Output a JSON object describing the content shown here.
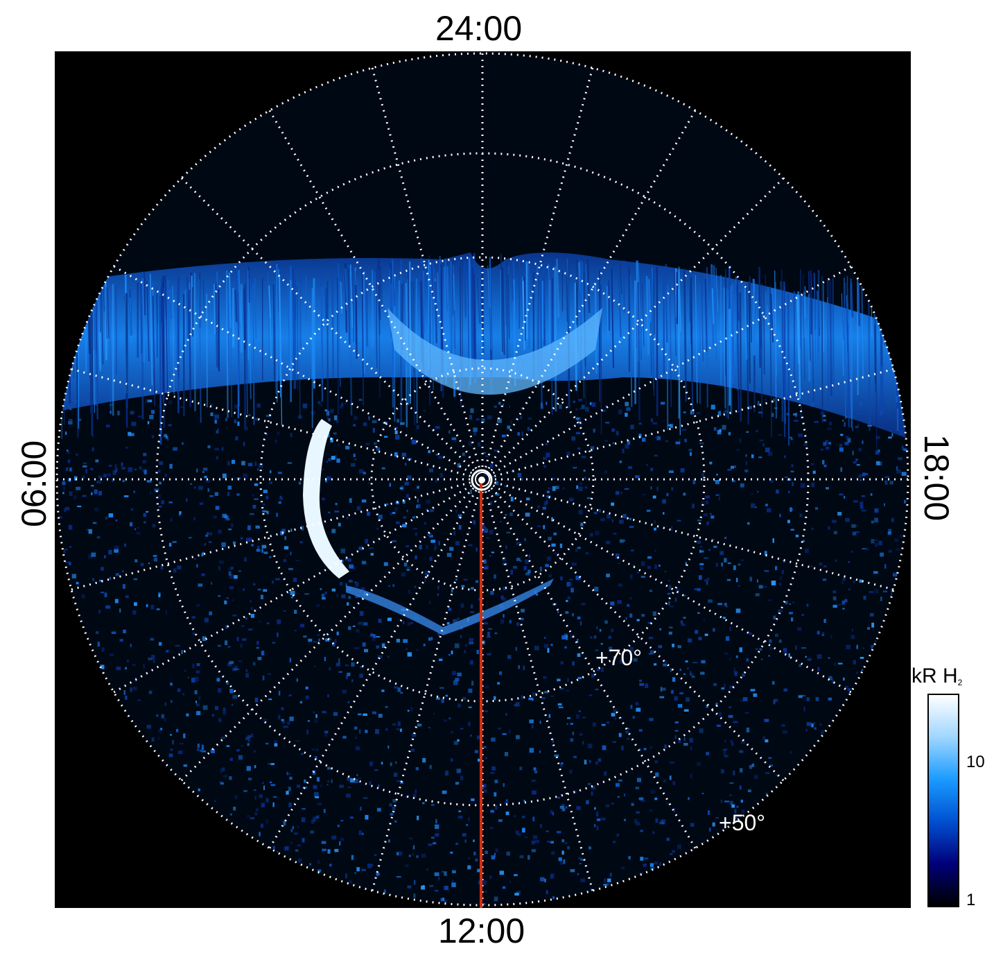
{
  "labels": {
    "top": "24:00",
    "bottom": "12:00",
    "left": "06:00",
    "right": "18:00",
    "lat70": "+70°",
    "lat50": "+50°"
  },
  "colorbar": {
    "title": "kR H",
    "title_sub": "2",
    "ticks": [
      "10",
      "1"
    ],
    "colors": [
      "#000000",
      "#00007a",
      "#0050d0",
      "#1a9bff",
      "#9fd6ff",
      "#ffffff"
    ]
  },
  "colors": {
    "background": "#000000",
    "grid": "#ffffff",
    "meridian": "#d03010",
    "aurora": "#1a8cff",
    "aurora_bright": "#cfe9ff"
  }
}
